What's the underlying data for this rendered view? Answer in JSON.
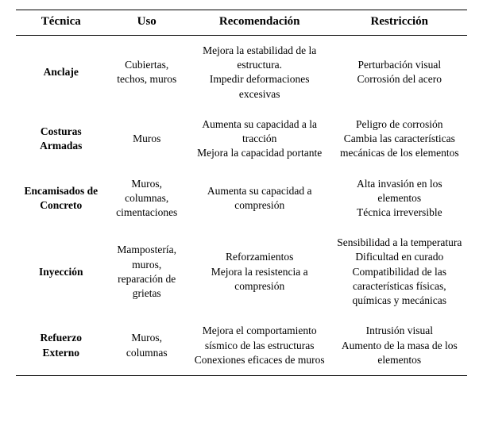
{
  "table": {
    "columns": [
      "Técnica",
      "Uso",
      "Recomendación",
      "Restricción"
    ],
    "column_widths_pct": [
      20,
      18,
      32,
      30
    ],
    "header_fontsize_pt": 15,
    "cell_fontsize_pt": 13.5,
    "font_family": "Times New Roman",
    "border_color": "#000000",
    "background_color": "#ffffff",
    "text_color": "#000000",
    "rows": [
      {
        "tecnica": "Anclaje",
        "uso": "Cubiertas, techos, muros",
        "recomendacion": "Mejora la estabilidad de la estructura.\nImpedir deformaciones excesivas",
        "restriccion": "Perturbación visual\nCorrosión del acero"
      },
      {
        "tecnica": "Costuras Armadas",
        "uso": "Muros",
        "recomendacion": "Aumenta su capacidad a la tracción\nMejora la capacidad portante",
        "restriccion": "Peligro de corrosión\nCambia las características mecánicas de los elementos"
      },
      {
        "tecnica": "Encamisados de Concreto",
        "uso": "Muros, columnas, cimentaciones",
        "recomendacion": "Aumenta su capacidad a compresión",
        "restriccion": "Alta invasión en los elementos\nTécnica irreversible"
      },
      {
        "tecnica": "Inyección",
        "uso": "Mampostería, muros, reparación de grietas",
        "recomendacion": "Reforzamientos\nMejora la resistencia a compresión",
        "restriccion": "Sensibilidad a la temperatura\nDificultad en curado\nCompatibilidad de las características físicas, químicas y mecánicas"
      },
      {
        "tecnica": "Refuerzo Externo",
        "uso": "Muros, columnas",
        "recomendacion": "Mejora el comportamiento sísmico de las estructuras\nConexiones eficaces de muros",
        "restriccion": "Intrusión visual\nAumento de la masa de los elementos"
      }
    ]
  }
}
